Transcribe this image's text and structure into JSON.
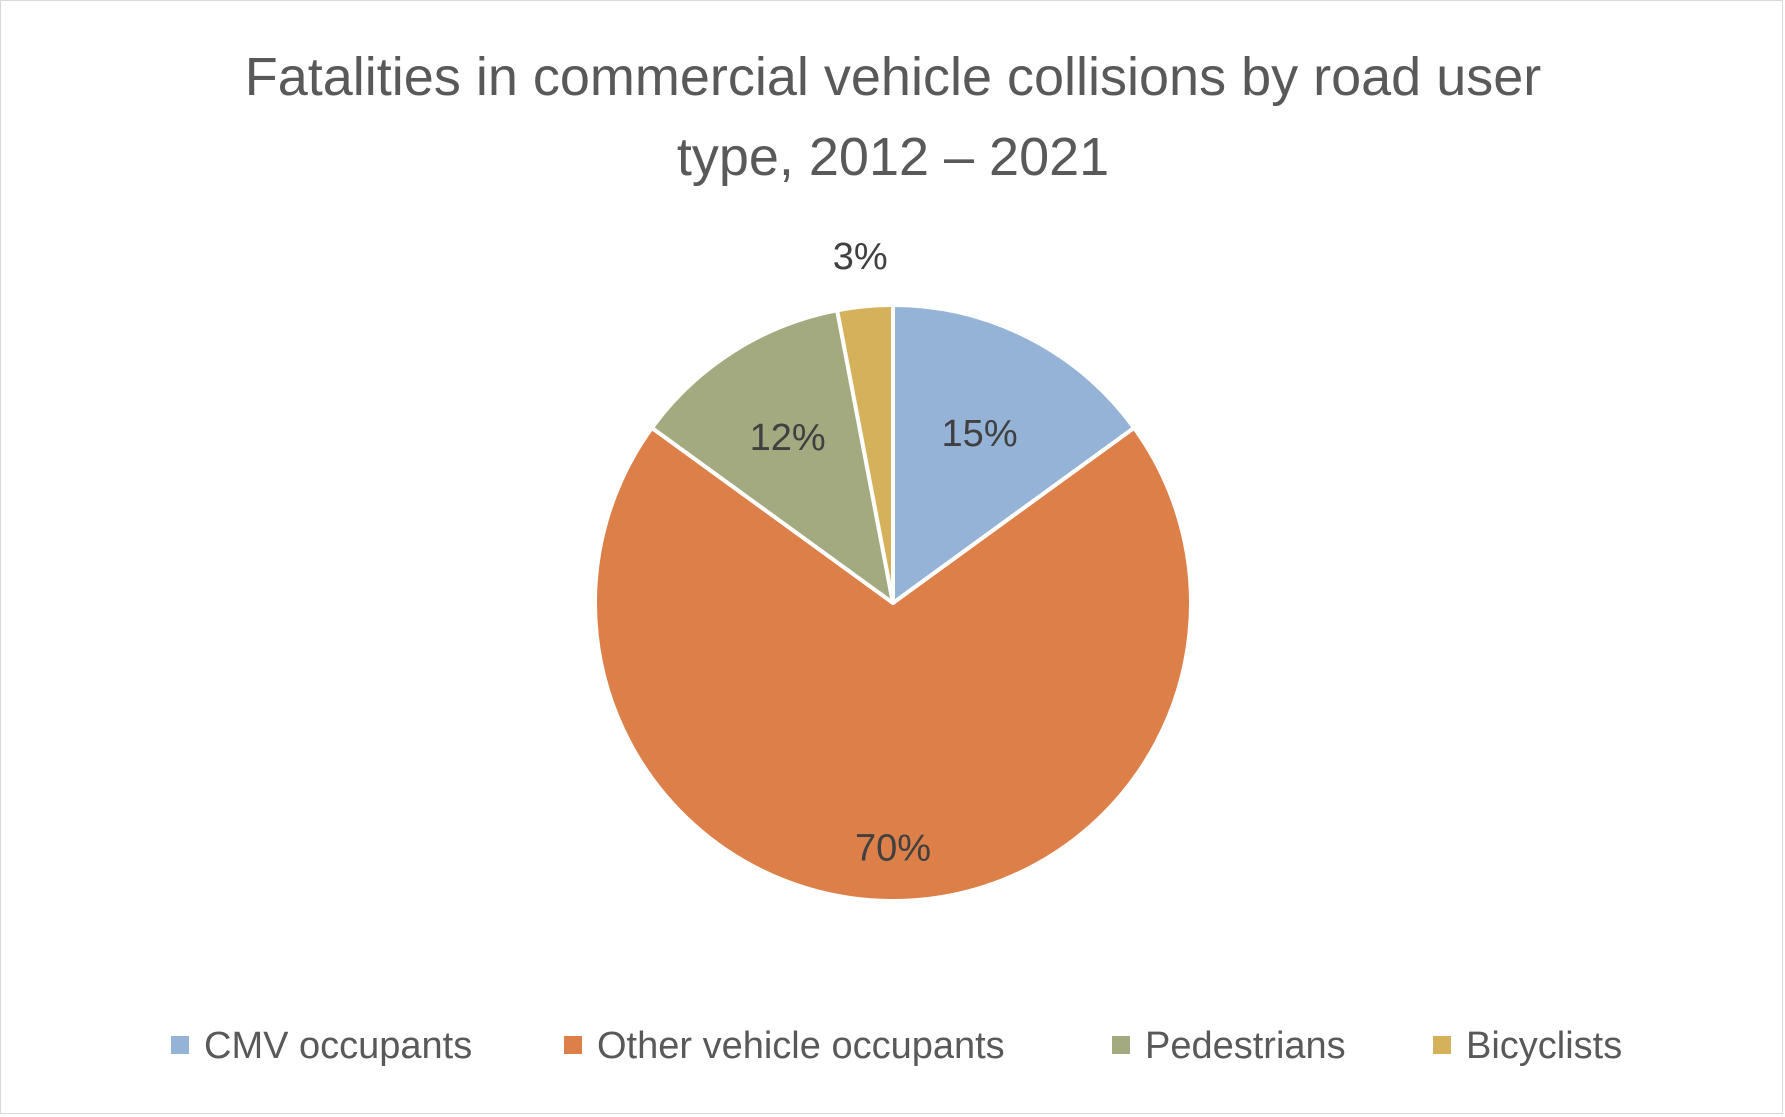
{
  "chart_data": {
    "type": "pie",
    "title": "Fatalities in commercial vehicle collisions by road user type, 2012 – 2021",
    "title_lines": [
      "Fatalities in commercial vehicle collisions by road user",
      "type, 2012 – 2021"
    ],
    "unit": "%",
    "categories": [
      "CMV occupants",
      "Other vehicle occupants",
      "Pedestrians",
      "Bicyclists"
    ],
    "values": [
      15,
      70,
      12,
      3
    ],
    "data_labels": [
      "15%",
      "70%",
      "12%",
      "3%"
    ],
    "colors": [
      "#95b3d7",
      "#dd7f48",
      "#a3aa80",
      "#d6b15c"
    ],
    "start_angle_deg": 0,
    "direction": "clockwise",
    "legend_position": "bottom",
    "slice_border_color": "#ffffff"
  }
}
